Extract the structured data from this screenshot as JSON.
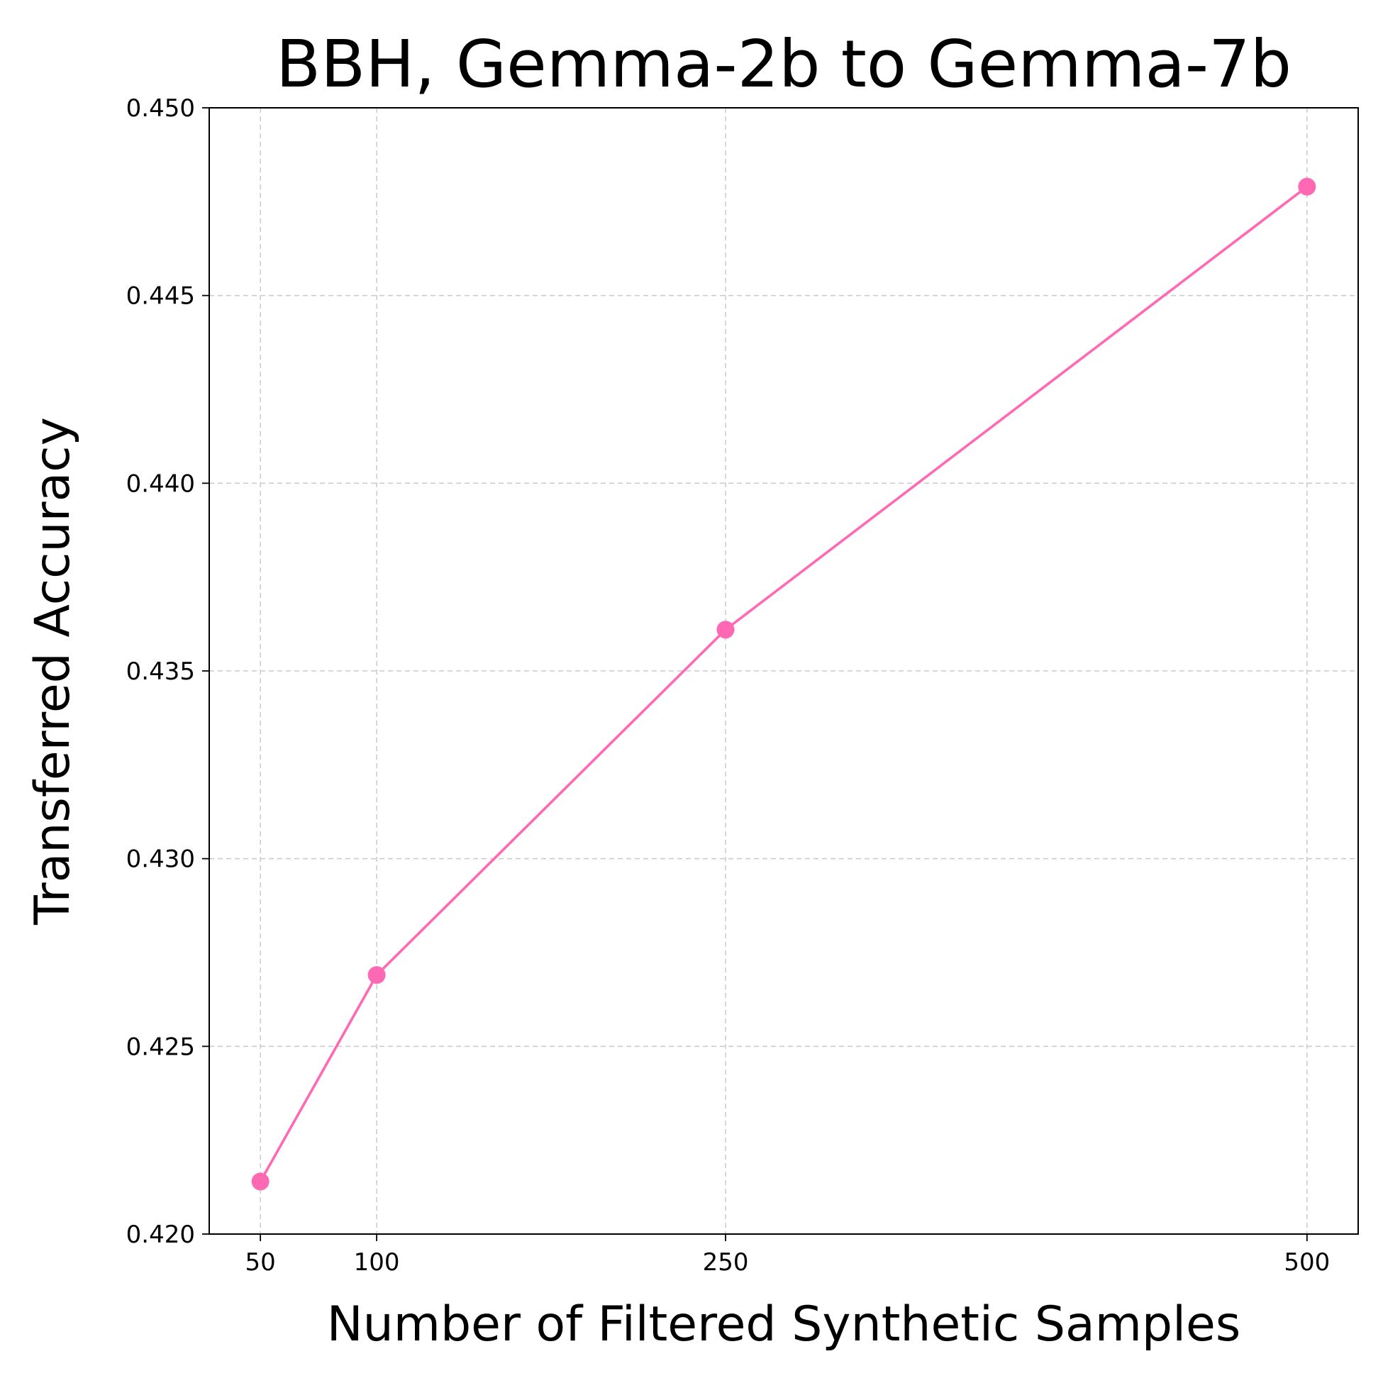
{
  "chart_data": {
    "type": "line",
    "title": "BBH, Gemma-2b to Gemma-7b",
    "xlabel": "Number of Filtered Synthetic Samples",
    "ylabel": "Transferred Accuracy",
    "x_ticks": [
      "50",
      "100",
      "250",
      "500"
    ],
    "y_ticks": [
      "0.420",
      "0.425",
      "0.430",
      "0.435",
      "0.440",
      "0.445",
      "0.450"
    ],
    "xlim": [
      28,
      522
    ],
    "ylim": [
      0.42,
      0.45
    ],
    "grid": true,
    "series": [
      {
        "x": [
          50,
          100,
          250,
          500
        ],
        "y": [
          0.4214,
          0.4269,
          0.4361,
          0.4479
        ],
        "color": "#ff69b4",
        "marker": "circle"
      }
    ]
  }
}
